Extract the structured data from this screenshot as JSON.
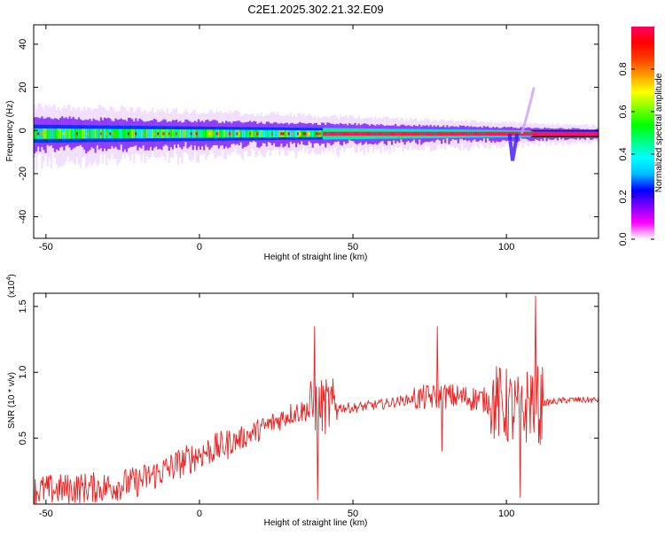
{
  "title": "C2E1.2025.302.21.32.E09",
  "chart_data": [
    {
      "type": "heatmap",
      "xlabel": "Height of straight line (km)",
      "ylabel": "Frequency (Hz)",
      "xlim": [
        -54,
        130
      ],
      "ylim": [
        -50,
        49
      ],
      "xticks": [
        -50,
        0,
        50,
        100
      ],
      "yticks": [
        -40,
        -20,
        0,
        20,
        40
      ],
      "colorbar": {
        "label": "Normalized spectral amplitude",
        "range": [
          0,
          1
        ],
        "ticks": [
          "0.0",
          "0.2",
          "0.4",
          "0.6",
          "0.8"
        ],
        "tick_values": [
          0,
          0.2,
          0.4,
          0.6,
          0.8
        ],
        "colormap": [
          "#ffffff",
          "#ff00ff",
          "#8000ff",
          "#0000ff",
          "#00c0ff",
          "#00ffff",
          "#00ff80",
          "#00ff00",
          "#80ff00",
          "#ffff00",
          "#ffa000",
          "#ff4000",
          "#ff0000",
          "#ff0060"
        ]
      },
      "ridge": {
        "x_start": -54,
        "x_end": 130,
        "center_hz": -1.5,
        "spread_start_hz": 7,
        "spread_end_hz": 2,
        "strong_band_from_km": 40,
        "strong_band_to_km": 108,
        "spike_at_km": 105,
        "spike_up_to_hz": 20,
        "dip_at_km": 101,
        "dip_down_to_hz": -14
      }
    },
    {
      "type": "line",
      "xlabel": "Height of straight line (km)",
      "ylabel": "SNR (10 * v/v)",
      "y_exponent": "(x10 4 )",
      "y_exponent_base": "(x10",
      "y_exponent_power": "4",
      "xlim": [
        -54,
        130
      ],
      "ylim": [
        0.0,
        1.6
      ],
      "xticks": [
        -50,
        0,
        50,
        100
      ],
      "yticks": [
        0.5,
        1.0,
        1.5
      ],
      "ytick_labels": [
        "0.5",
        "1.0",
        "1.5"
      ],
      "series": [
        {
          "color": "#ee2020",
          "trend_x": [
            -54,
            -40,
            -30,
            -20,
            -10,
            0,
            10,
            20,
            30,
            40,
            50,
            60,
            70,
            80,
            90,
            95,
            100,
            105,
            108,
            110,
            120,
            130
          ],
          "trend_y": [
            0.1,
            0.12,
            0.13,
            0.17,
            0.27,
            0.38,
            0.46,
            0.57,
            0.69,
            0.74,
            0.73,
            0.76,
            0.8,
            0.82,
            0.8,
            0.78,
            0.74,
            0.68,
            0.8,
            0.76,
            0.79,
            0.79
          ],
          "peaks": [
            [
              37.5,
              1.35
            ],
            [
              38.5,
              0.03
            ],
            [
              77.5,
              1.35
            ],
            [
              79,
              0.4
            ],
            [
              104.5,
              0.05
            ],
            [
              109.5,
              1.58
            ],
            [
              111,
              0.45
            ]
          ]
        }
      ]
    }
  ]
}
